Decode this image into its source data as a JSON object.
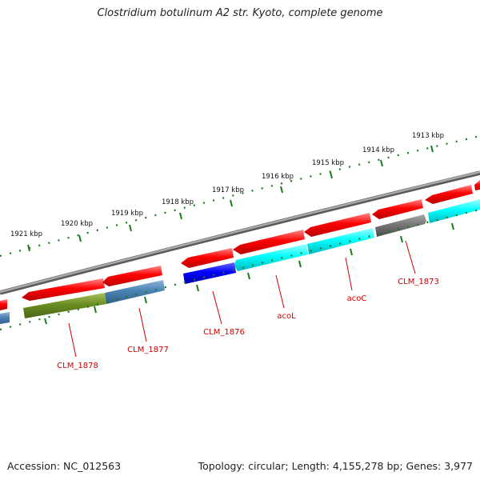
{
  "title": "Clostridium botulinum A2 str. Kyoto, complete genome",
  "footer": {
    "accession": "Accession: NC_012563",
    "summary": "Topology: circular; Length: 4,155,278 bp; Genes: 3,977"
  },
  "colors": {
    "backbone": "#8a8a8a",
    "tick": "#1a7a1a",
    "label": "#cc0000",
    "forward_gene": "#ff0000",
    "cyan_gene": "#00ffff",
    "blue_gene": "#0000ff",
    "steel_gene": "#4a82b4",
    "olive_gene": "#6b8e23",
    "gray_gene": "#7a7a7a"
  },
  "kbp_labels": [
    "1913 kbp",
    "1914 kbp",
    "1915 kbp",
    "1916 kbp",
    "1917 kbp",
    "1918 kbp",
    "1919 kbp",
    "1920 kbp",
    "1921 kbp"
  ],
  "gene_labels": {
    "clm_1873": "CLM_1873",
    "acoc": "acoC",
    "acol": "acoL",
    "clm_1876": "CLM_1876",
    "clm_1877": "CLM_1877",
    "clm_1878": "CLM_1878"
  }
}
